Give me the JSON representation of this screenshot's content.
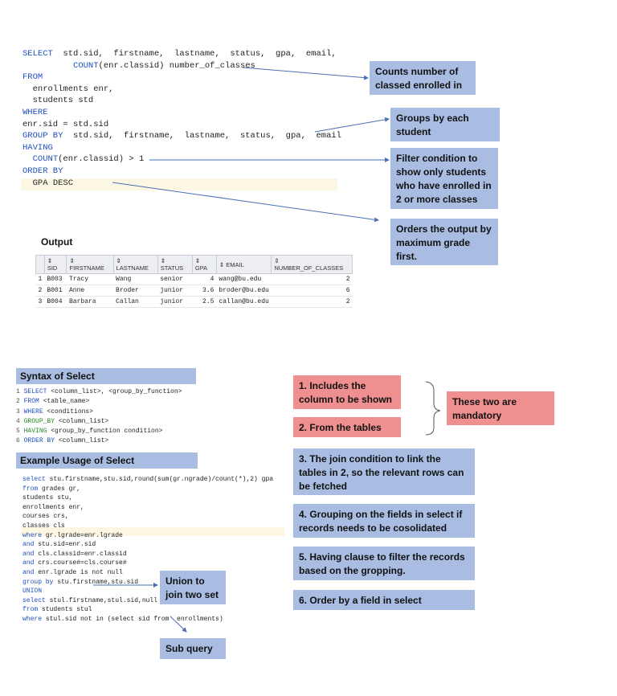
{
  "query1": {
    "lines": [
      {
        "kw": "SELECT",
        "rest": "  std.sid,  firstname,  lastname,  status,  gpa,  email,"
      },
      {
        "indent": "          ",
        "fn": "COUNT",
        "rest": "(enr.classid) number_of_classes"
      },
      {
        "kw": "FROM",
        "rest": ""
      },
      {
        "indent": "  ",
        "rest": "enrollments enr,"
      },
      {
        "indent": "  ",
        "rest": "students std"
      },
      {
        "kw": "WHERE",
        "rest": ""
      },
      {
        "rest": "enr.sid = std.sid"
      },
      {
        "kw": "GROUP BY",
        "rest": "  std.sid,  firstname,  lastname,  status,  gpa,  email"
      },
      {
        "kw": "HAVING",
        "rest": ""
      },
      {
        "indent": "  ",
        "fn": "COUNT",
        "rest": "(enr.classid) > 1"
      },
      {
        "kw": "ORDER BY",
        "rest": ""
      },
      {
        "indent": "  ",
        "rest": "GPA DESC"
      }
    ]
  },
  "callouts1": [
    "Counts number of classed enrolled in",
    "Groups by each student",
    "Filter condition to show only students who have enrolled in 2 or more classes",
    "Orders the output by maximum grade first."
  ],
  "output": {
    "title": "Output",
    "columns": [
      "SID",
      "FIRSTNAME",
      "LASTNAME",
      "STATUS",
      "GPA",
      "EMAIL",
      "NUMBER_OF_CLASSES"
    ],
    "rows": [
      [
        "1",
        "B003",
        "Tracy",
        "Wang",
        "senior",
        "4",
        "wang@bu.edu",
        "2"
      ],
      [
        "2",
        "B001",
        "Anne",
        "Broder",
        "junior",
        "3.6",
        "broder@bu.edu",
        "6"
      ],
      [
        "3",
        "B004",
        "Barbara",
        "Callan",
        "junior",
        "2.5",
        "callan@bu.edu",
        "2"
      ]
    ]
  },
  "syntax": {
    "title": "Syntax of Select",
    "lines": [
      {
        "n": "1",
        "kw": "SELECT",
        "rest": " <column_list>, <group_by_function>"
      },
      {
        "n": "2",
        "kw": "FROM",
        "rest": " <table_name>"
      },
      {
        "n": "3",
        "kw": "WHERE",
        "rest": " <conditions>"
      },
      {
        "n": "4",
        "kw": "GROUP_BY",
        "rest": " <column_list>"
      },
      {
        "n": "5",
        "kw": "HAVING",
        "rest": " <group_by_function condition>"
      },
      {
        "n": "6",
        "kw": "ORDER BY",
        "rest": " <column_list>"
      }
    ]
  },
  "example": {
    "title": "Example Usage of Select",
    "lines": [
      "select stu.firstname,stu.sid,round(sum(gr.ngrade)/count(*),2) gpa",
      "from grades gr,",
      "students stu,",
      "enrollments enr,",
      "courses crs,",
      "classes cls",
      "where gr.lgrade=enr.lgrade",
      "and stu.sid=enr.sid",
      "and cls.classid=enr.classid",
      "and crs.course#=cls.course#",
      "and enr.lgrade is not null",
      "group by stu.firstname,stu.sid",
      "UNION",
      "select stul.firstname,stul.sid,null",
      "from students stul",
      "where stul.sid not in (select sid from  enrollments)"
    ],
    "union_label": "Union to join two set",
    "subquery_label": "Sub query"
  },
  "notes": {
    "n1": "1. Includes the column to be shown",
    "n2": "2. From the tables",
    "mandatory": "These two are mandatory",
    "n3": "3. The join condition to link the tables in 2, so the relevant rows can be fetched",
    "n4": "4. Grouping on the fields in select if records needs to be cosolidated",
    "n5": "5. Having clause to filter the records based on the gropping.",
    "n6": "6. Order by a field in select"
  },
  "colors": {
    "callout_blue": "#a9bde3",
    "callout_red": "#f08f8f",
    "keyword": "#1f4fbf"
  }
}
